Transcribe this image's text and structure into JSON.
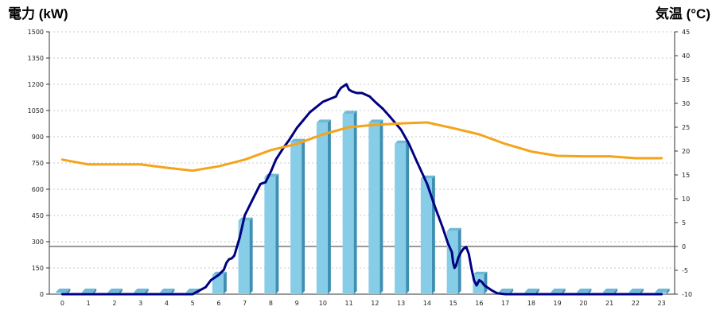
{
  "chart_data": {
    "type": "bar",
    "left_axis_title": "電力 (kW)",
    "right_axis_title": "気温 (°C)",
    "categories": [
      "0",
      "1",
      "2",
      "3",
      "4",
      "5",
      "6",
      "7",
      "8",
      "9",
      "10",
      "11",
      "12",
      "13",
      "14",
      "15",
      "16",
      "17",
      "18",
      "19",
      "20",
      "21",
      "22",
      "23"
    ],
    "left_ticks": [
      "0",
      "150",
      "300",
      "450",
      "600",
      "750",
      "900",
      "1050",
      "1200",
      "1350",
      "1500"
    ],
    "right_ticks": [
      "-10",
      "-5",
      "0",
      "5",
      "10",
      "15",
      "20",
      "25",
      "30",
      "35",
      "40",
      "45"
    ],
    "ylim_left": [
      0,
      1500
    ],
    "ylim_right": [
      -10,
      45
    ],
    "grid": true,
    "colors": {
      "bars": "#87cde8",
      "line": "#000080",
      "temperature": "#f5a31a",
      "left_title": "#1a6fb5",
      "right_title": "#f08a24"
    },
    "series": [
      {
        "type": "bar",
        "axis": "left",
        "values": [
          0,
          0,
          0,
          0,
          0,
          0,
          110,
          420,
          670,
          870,
          980,
          1030,
          980,
          860,
          660,
          360,
          110,
          0,
          0,
          0,
          0,
          0,
          0,
          0
        ]
      },
      {
        "type": "line",
        "axis": "left",
        "x": [
          0,
          5,
          5.5,
          5.7,
          6,
          6.2,
          6.3,
          6.4,
          6.5,
          6.6,
          6.8,
          7,
          7.3,
          7.6,
          7.8,
          8,
          8.2,
          8.5,
          8.7,
          9,
          9.5,
          10,
          10.5,
          10.6,
          10.7,
          10.9,
          11,
          11.1,
          11.3,
          11.5,
          11.8,
          12,
          12.3,
          12.6,
          13,
          13.3,
          13.6,
          14,
          14.3,
          14.6,
          14.8,
          14.95,
          15,
          15.05,
          15.1,
          15.2,
          15.3,
          15.4,
          15.5,
          15.6,
          15.7,
          15.8,
          15.9,
          16,
          16.1,
          16.2,
          16.3,
          16.5,
          16.7,
          17,
          23
        ],
        "y": [
          0,
          0,
          40,
          80,
          110,
          140,
          180,
          200,
          205,
          220,
          320,
          450,
          540,
          630,
          640,
          700,
          770,
          840,
          880,
          950,
          1040,
          1100,
          1130,
          1160,
          1180,
          1200,
          1170,
          1160,
          1150,
          1150,
          1130,
          1100,
          1060,
          1010,
          940,
          860,
          760,
          630,
          500,
          380,
          290,
          240,
          180,
          150,
          160,
          210,
          240,
          260,
          270,
          230,
          150,
          80,
          50,
          80,
          70,
          50,
          40,
          20,
          5,
          0,
          0
        ]
      },
      {
        "type": "line",
        "axis": "right",
        "x": [
          0,
          1,
          2,
          3,
          4,
          5,
          6,
          7,
          8,
          9,
          10,
          11,
          12,
          13,
          14,
          15,
          16,
          17,
          18,
          19,
          20,
          21,
          22,
          23
        ],
        "y": [
          18.2,
          17.2,
          17.2,
          17.2,
          16.5,
          15.9,
          16.8,
          18.2,
          20.2,
          21.5,
          23.5,
          25,
          25.5,
          25.8,
          26,
          24.8,
          23.5,
          21.5,
          19.9,
          19,
          18.9,
          18.9,
          18.5,
          18.5
        ]
      }
    ]
  }
}
